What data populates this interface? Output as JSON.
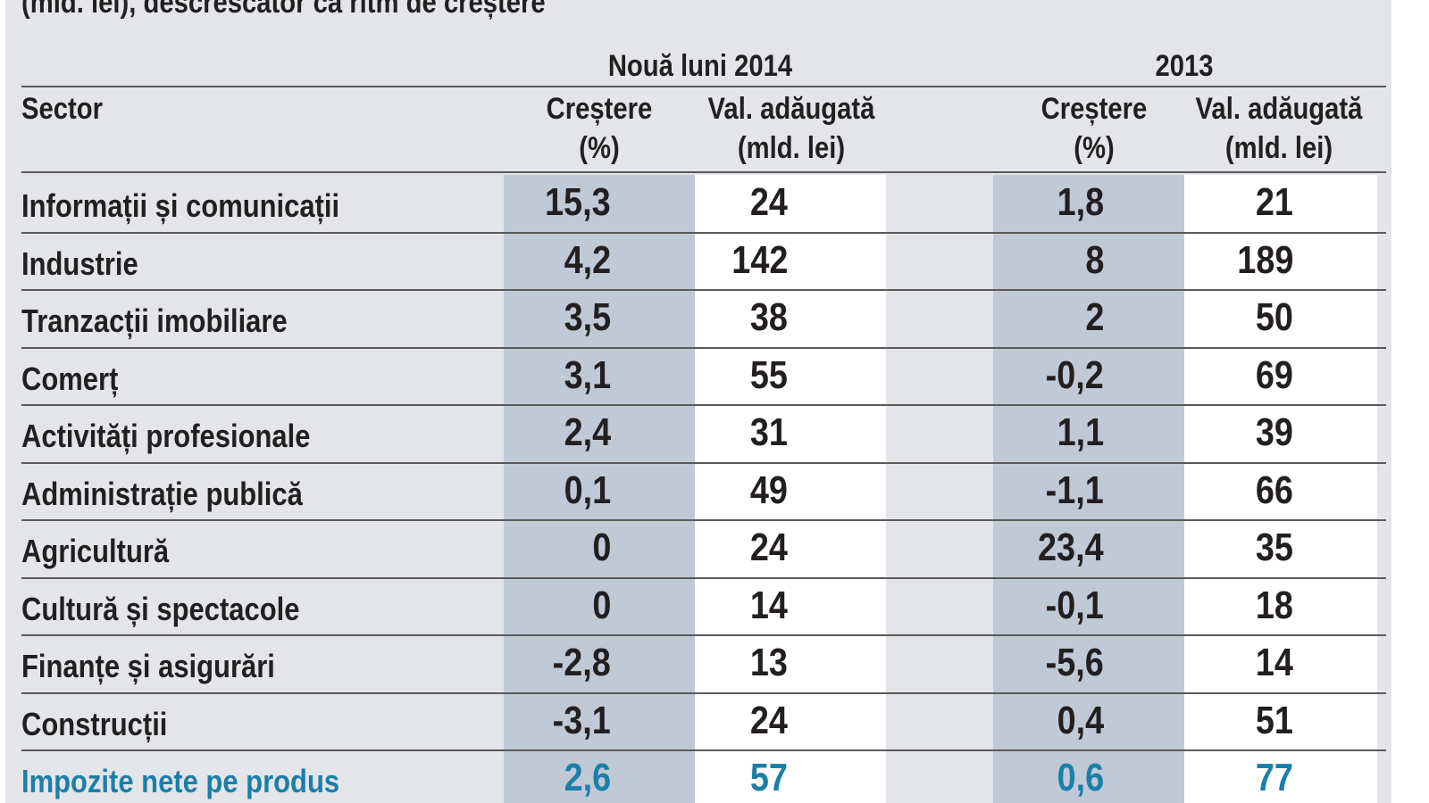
{
  "title": "(mld. lei), descrescător ca ritm de creștere",
  "chart_data": {
    "type": "table",
    "groups": [
      "Nouă luni 2014",
      "2013"
    ],
    "headers": {
      "sector": "Sector",
      "growth_line1": "Creștere",
      "growth_line2": "(%)",
      "value_line1": "Val. adăugată",
      "value_line2": "(mld. lei)"
    },
    "rows": [
      {
        "sector": "Informații și comunicații",
        "g2014": "15,3",
        "v2014": "24",
        "g2013": "1,8",
        "v2013": "21"
      },
      {
        "sector": "Industrie",
        "g2014": "4,2",
        "v2014": "142",
        "g2013": "8",
        "v2013": "189"
      },
      {
        "sector": "Tranzacții imobiliare",
        "g2014": "3,5",
        "v2014": "38",
        "g2013": "2",
        "v2013": "50"
      },
      {
        "sector": "Comerț",
        "g2014": "3,1",
        "v2014": "55",
        "g2013": "-0,2",
        "v2013": "69"
      },
      {
        "sector": "Activități profesionale",
        "g2014": "2,4",
        "v2014": "31",
        "g2013": "1,1",
        "v2013": "39"
      },
      {
        "sector": "Administrație publică",
        "g2014": "0,1",
        "v2014": "49",
        "g2013": "-1,1",
        "v2013": "66"
      },
      {
        "sector": "Agricultură",
        "g2014": "0",
        "v2014": "24",
        "g2013": "23,4",
        "v2013": "35"
      },
      {
        "sector": "Cultură și spectacole",
        "g2014": "0",
        "v2014": "14",
        "g2013": "-0,1",
        "v2013": "18"
      },
      {
        "sector": "Finanțe și asigurări",
        "g2014": "-2,8",
        "v2014": "13",
        "g2013": "-5,6",
        "v2013": "14"
      },
      {
        "sector": "Construcții",
        "g2014": "-3,1",
        "v2014": "24",
        "g2013": "0,4",
        "v2013": "51"
      },
      {
        "sector": "Impozite nete pe produs",
        "g2014": "2,6",
        "v2014": "57",
        "g2013": "0,6",
        "v2013": "77",
        "highlight": true
      }
    ],
    "colors": {
      "panel": "#e4e5e9",
      "growth_column": "#c1c9d6",
      "value_column": "#ffffff",
      "text": "#231f20",
      "highlight_text": "#1a7fa9"
    }
  }
}
